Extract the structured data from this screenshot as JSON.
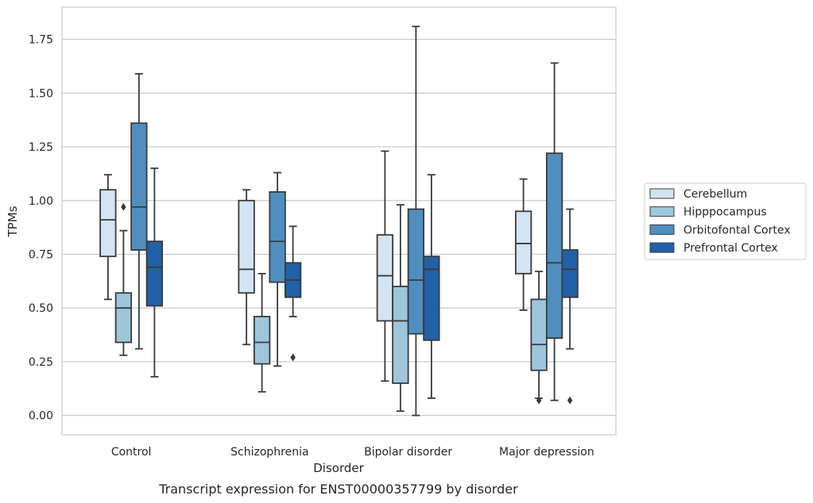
{
  "caption": "Transcript expression for ENST00000357799 by disorder",
  "colors": {
    "Cerebellum": "#d3e4f3",
    "Hipppocampus": "#9dc6dd",
    "Orbitofontal Cortex": "#4f8fc0",
    "Prefrontal Cortex": "#2161a8",
    "line": "#3a3a3a",
    "grid": "#cccccc"
  },
  "chart_data": {
    "type": "box",
    "xlabel": "Disorder",
    "ylabel": "TPMs",
    "ylim": [
      -0.09,
      1.9
    ],
    "yticks": [
      0.0,
      0.25,
      0.5,
      0.75,
      1.0,
      1.25,
      1.5,
      1.75
    ],
    "ytick_labels": [
      "0.00",
      "0.25",
      "0.50",
      "0.75",
      "1.00",
      "1.25",
      "1.50",
      "1.75"
    ],
    "categories": [
      "Control",
      "Schizophrenia",
      "Bipolar disorder",
      "Major depression"
    ],
    "grid": "horizontal",
    "legend_position": "right",
    "series": [
      {
        "name": "Cerebellum",
        "boxes": [
          {
            "whisker_low": 0.54,
            "q1": 0.74,
            "median": 0.91,
            "q3": 1.05,
            "whisker_high": 1.12,
            "outliers": []
          },
          {
            "whisker_low": 0.33,
            "q1": 0.57,
            "median": 0.68,
            "q3": 1.0,
            "whisker_high": 1.05,
            "outliers": []
          },
          {
            "whisker_low": 0.16,
            "q1": 0.44,
            "median": 0.65,
            "q3": 0.84,
            "whisker_high": 1.23,
            "outliers": []
          },
          {
            "whisker_low": 0.49,
            "q1": 0.66,
            "median": 0.8,
            "q3": 0.95,
            "whisker_high": 1.1,
            "outliers": []
          }
        ]
      },
      {
        "name": "Hipppocampus",
        "boxes": [
          {
            "whisker_low": 0.28,
            "q1": 0.34,
            "median": 0.5,
            "q3": 0.57,
            "whisker_high": 0.86,
            "outliers": [
              0.97
            ]
          },
          {
            "whisker_low": 0.11,
            "q1": 0.24,
            "median": 0.34,
            "q3": 0.46,
            "whisker_high": 0.66,
            "outliers": []
          },
          {
            "whisker_low": 0.02,
            "q1": 0.15,
            "median": 0.44,
            "q3": 0.6,
            "whisker_high": 0.98,
            "outliers": []
          },
          {
            "whisker_low": 0.08,
            "q1": 0.21,
            "median": 0.33,
            "q3": 0.54,
            "whisker_high": 0.67,
            "outliers": [
              0.07
            ]
          }
        ]
      },
      {
        "name": "Orbitofontal Cortex",
        "boxes": [
          {
            "whisker_low": 0.31,
            "q1": 0.77,
            "median": 0.97,
            "q3": 1.36,
            "whisker_high": 1.59,
            "outliers": []
          },
          {
            "whisker_low": 0.23,
            "q1": 0.62,
            "median": 0.81,
            "q3": 1.04,
            "whisker_high": 1.13,
            "outliers": []
          },
          {
            "whisker_low": 0.0,
            "q1": 0.38,
            "median": 0.63,
            "q3": 0.96,
            "whisker_high": 1.81,
            "outliers": []
          },
          {
            "whisker_low": 0.07,
            "q1": 0.36,
            "median": 0.71,
            "q3": 1.22,
            "whisker_high": 1.64,
            "outliers": []
          }
        ]
      },
      {
        "name": "Prefrontal Cortex",
        "boxes": [
          {
            "whisker_low": 0.18,
            "q1": 0.51,
            "median": 0.69,
            "q3": 0.81,
            "whisker_high": 1.15,
            "outliers": []
          },
          {
            "whisker_low": 0.46,
            "q1": 0.55,
            "median": 0.63,
            "q3": 0.71,
            "whisker_high": 0.88,
            "outliers": [
              0.27
            ]
          },
          {
            "whisker_low": 0.08,
            "q1": 0.35,
            "median": 0.68,
            "q3": 0.74,
            "whisker_high": 1.12,
            "outliers": []
          },
          {
            "whisker_low": 0.31,
            "q1": 0.55,
            "median": 0.68,
            "q3": 0.77,
            "whisker_high": 0.96,
            "outliers": [
              0.07
            ]
          }
        ]
      }
    ]
  }
}
